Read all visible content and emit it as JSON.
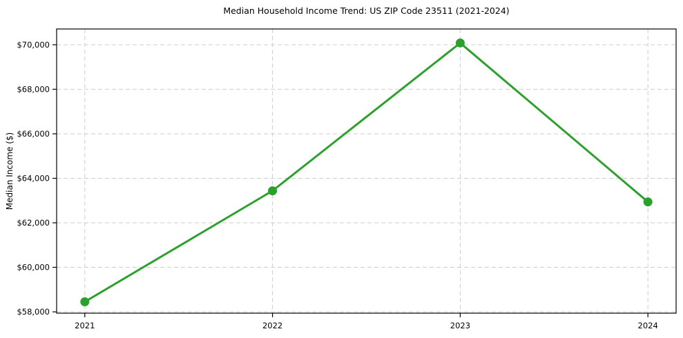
{
  "chart_data": {
    "type": "line",
    "title": "Median Household Income Trend: US ZIP Code 23511 (2021-2024)",
    "xlabel": "",
    "ylabel": "Median Income ($)",
    "x": [
      2021,
      2022,
      2023,
      2024
    ],
    "y": [
      58450,
      63440,
      70080,
      62940
    ],
    "xticks": {
      "values": [
        2021,
        2022,
        2023,
        2024
      ],
      "labels": [
        "2021",
        "2022",
        "2023",
        "2024"
      ]
    },
    "yticks": {
      "values": [
        58000,
        60000,
        62000,
        64000,
        66000,
        68000,
        70000
      ],
      "labels": [
        "$58,000",
        "$60,000",
        "$62,000",
        "$64,000",
        "$66,000",
        "$68,000",
        "$70,000"
      ]
    },
    "xlim": [
      2020.85,
      2024.15
    ],
    "ylim": [
      57940,
      70710
    ],
    "grid": true,
    "grid_style": "dashed",
    "legend": "none",
    "line_color": "#2ca02c",
    "marker_color": "#2ca02c",
    "grid_color": "#cdcdcd",
    "frame_color": "#000000",
    "text_color": "#000000",
    "background_color": "#ffffff"
  }
}
